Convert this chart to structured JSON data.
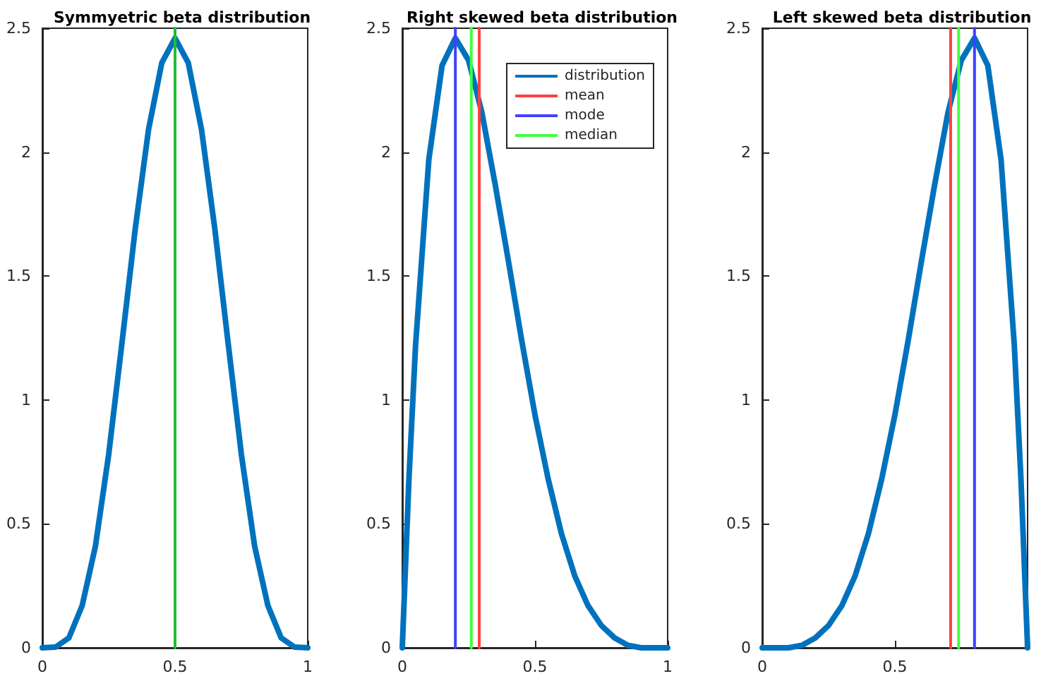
{
  "chart_data": [
    {
      "type": "line",
      "title": "Symmyetric beta distribution",
      "xlim": [
        0,
        1
      ],
      "xticks": [
        0,
        0.5,
        1
      ],
      "ylim": [
        0,
        2.5
      ],
      "yticks": [
        0,
        0.5,
        1,
        1.5,
        2,
        2.5
      ],
      "grid": false,
      "legend": false,
      "marker": "none",
      "line_style": "solid",
      "series": [
        {
          "color": "#0072bd",
          "x": [
            0,
            0.05,
            0.1,
            0.15,
            0.2,
            0.25,
            0.3,
            0.35,
            0.4,
            0.45,
            0.5,
            0.55,
            0.6,
            0.65,
            0.7,
            0.75,
            0.8,
            0.85,
            0.9,
            0.95,
            1
          ],
          "values": [
            0,
            0.003,
            0.04,
            0.17,
            0.41,
            0.78,
            1.23,
            1.69,
            2.09,
            2.36,
            2.46,
            2.36,
            2.09,
            1.69,
            1.23,
            0.78,
            0.41,
            0.17,
            0.04,
            0.003,
            0
          ]
        },
        {
          "color": "#22bb33",
          "x": [
            0.5,
            0.5
          ],
          "values": [
            0,
            2.5
          ]
        }
      ]
    },
    {
      "type": "line",
      "title": "Right skewed beta distribution",
      "xlim": [
        0,
        1
      ],
      "xticks": [
        0,
        0.5,
        1
      ],
      "ylim": [
        0,
        2.5
      ],
      "yticks": [
        0,
        0.5,
        1,
        1.5,
        2,
        2.5
      ],
      "grid": false,
      "legend": "top right",
      "marker": "none",
      "line_style": "solid",
      "series": [
        {
          "name": "distribution",
          "color": "#0072bd",
          "x": [
            0,
            0.025,
            0.05,
            0.1,
            0.15,
            0.2,
            0.25,
            0.3,
            0.35,
            0.4,
            0.45,
            0.5,
            0.55,
            0.6,
            0.65,
            0.7,
            0.75,
            0.8,
            0.85,
            0.9,
            0.95,
            1
          ],
          "values": [
            0,
            0.68,
            1.22,
            1.97,
            2.35,
            2.46,
            2.37,
            2.16,
            1.87,
            1.56,
            1.24,
            0.94,
            0.68,
            0.46,
            0.29,
            0.17,
            0.09,
            0.04,
            0.01,
            0,
            0,
            0
          ]
        },
        {
          "name": "mean",
          "color": "#ff4040",
          "x": [
            0.29,
            0.29
          ],
          "values": [
            0,
            2.5
          ]
        },
        {
          "name": "mode",
          "color": "#4040ff",
          "x": [
            0.2,
            0.2
          ],
          "values": [
            0,
            2.5
          ]
        },
        {
          "name": "median",
          "color": "#40ff40",
          "x": [
            0.26,
            0.26
          ],
          "values": [
            0,
            2.5
          ]
        }
      ]
    },
    {
      "type": "line",
      "title": "Left skewed beta distribution",
      "xlim": [
        0,
        1
      ],
      "xticks": [
        0,
        0.5
      ],
      "ylim": [
        0,
        2.5
      ],
      "yticks": [
        0,
        0.5,
        1,
        1.5,
        2,
        2.5
      ],
      "grid": false,
      "legend": false,
      "marker": "none",
      "line_style": "solid",
      "series": [
        {
          "color": "#0072bd",
          "x": [
            0,
            0.05,
            0.1,
            0.15,
            0.2,
            0.25,
            0.3,
            0.35,
            0.4,
            0.45,
            0.5,
            0.55,
            0.6,
            0.65,
            0.7,
            0.75,
            0.8,
            0.85,
            0.9,
            0.95,
            0.975,
            1
          ],
          "values": [
            0,
            0,
            0,
            0.01,
            0.04,
            0.09,
            0.17,
            0.29,
            0.46,
            0.68,
            0.94,
            1.24,
            1.56,
            1.87,
            2.16,
            2.37,
            2.46,
            2.35,
            1.97,
            1.22,
            0.68,
            0
          ]
        },
        {
          "color": "#ff4040",
          "x": [
            0.71,
            0.71
          ],
          "values": [
            0,
            2.5
          ]
        },
        {
          "color": "#40ff40",
          "x": [
            0.74,
            0.74
          ],
          "values": [
            0,
            2.5
          ]
        },
        {
          "color": "#4040ff",
          "x": [
            0.8,
            0.8
          ],
          "values": [
            0,
            2.5
          ]
        }
      ]
    }
  ]
}
